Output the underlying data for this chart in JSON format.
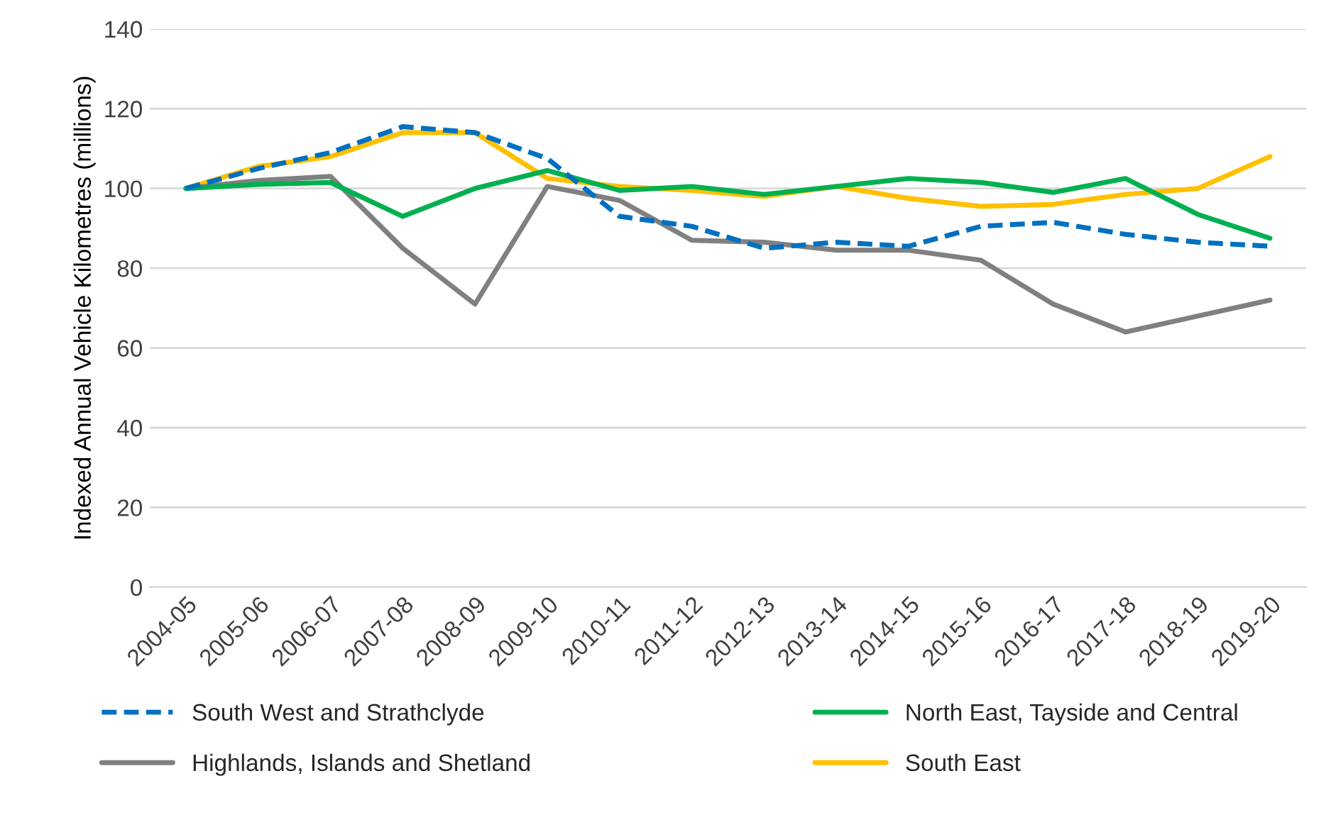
{
  "chart_data": {
    "type": "line",
    "ylabel": "Indexed Annual Vehicle Kilometres (millions)",
    "categories": [
      "2004-05",
      "2005-06",
      "2006-07",
      "2007-08",
      "2008-09",
      "2009-10",
      "2010-11",
      "2011-12",
      "2012-13",
      "2013-14",
      "2014-15",
      "2015-16",
      "2016-17",
      "2017-18",
      "2018-19",
      "2019-20"
    ],
    "series": [
      {
        "name": "South West and Strathclyde",
        "color": "#0070c0",
        "line_style": "dashed",
        "values": [
          100,
          105,
          109,
          115.5,
          114,
          107.5,
          93,
          90.5,
          85,
          86.5,
          85.5,
          90.5,
          91.5,
          88.5,
          86.5,
          85.5
        ]
      },
      {
        "name": "North East, Tayside and Central",
        "color": "#00b050",
        "line_style": "solid",
        "values": [
          100,
          101,
          101.5,
          93,
          100,
          104.5,
          99.5,
          100.5,
          98.5,
          100.5,
          102.5,
          101.5,
          99,
          102.5,
          93.5,
          87.5
        ]
      },
      {
        "name": "Highlands, Islands and Shetland",
        "color": "#808080",
        "line_style": "solid",
        "values": [
          100,
          102,
          103,
          85,
          71,
          100.5,
          97,
          87,
          86.5,
          84.5,
          84.5,
          82,
          71,
          64,
          68,
          72
        ]
      },
      {
        "name": "South East",
        "color": "#ffc000",
        "line_style": "solid",
        "values": [
          100,
          105.5,
          108,
          114,
          114,
          102.5,
          100.5,
          99.5,
          98,
          100.5,
          97.5,
          95.5,
          96,
          98.5,
          100,
          108
        ]
      }
    ],
    "ylim": [
      0,
      140
    ],
    "yticks": [
      0,
      20,
      40,
      60,
      80,
      100,
      120,
      140
    ],
    "grid": "y",
    "legend": "bottom",
    "marker": "none"
  }
}
